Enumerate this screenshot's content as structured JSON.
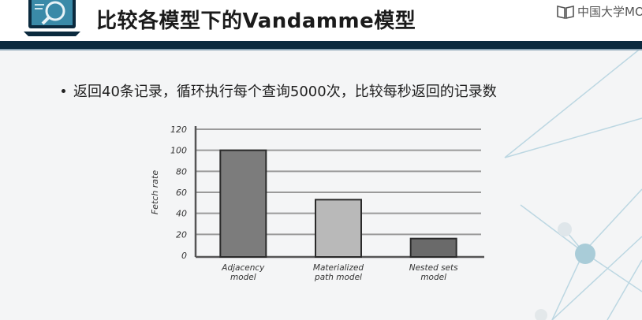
{
  "slide": {
    "title": "比较各模型下的Vandamme模型",
    "watermark": "中国大学MO",
    "bullet": "返回40条记录，循环执行每个查询5000次，比较每秒返回的记录数"
  },
  "chart_data": {
    "type": "bar",
    "categories": [
      [
        "Adjacency",
        "model"
      ],
      [
        "Materialized",
        "path model"
      ],
      [
        "Nested sets",
        "model"
      ]
    ],
    "values": [
      100,
      53,
      16
    ],
    "ylabel": "Fetch rate",
    "ylim": [
      0,
      120
    ],
    "yticks": [
      0,
      20,
      40,
      60,
      80,
      100,
      120
    ],
    "grid": true,
    "bar_colors": [
      "#7c7c7c",
      "#b9b9b9",
      "#6a6a6a"
    ]
  },
  "colors": {
    "header_bar": "#0b2a3e",
    "accent": "#4a9bb8"
  }
}
